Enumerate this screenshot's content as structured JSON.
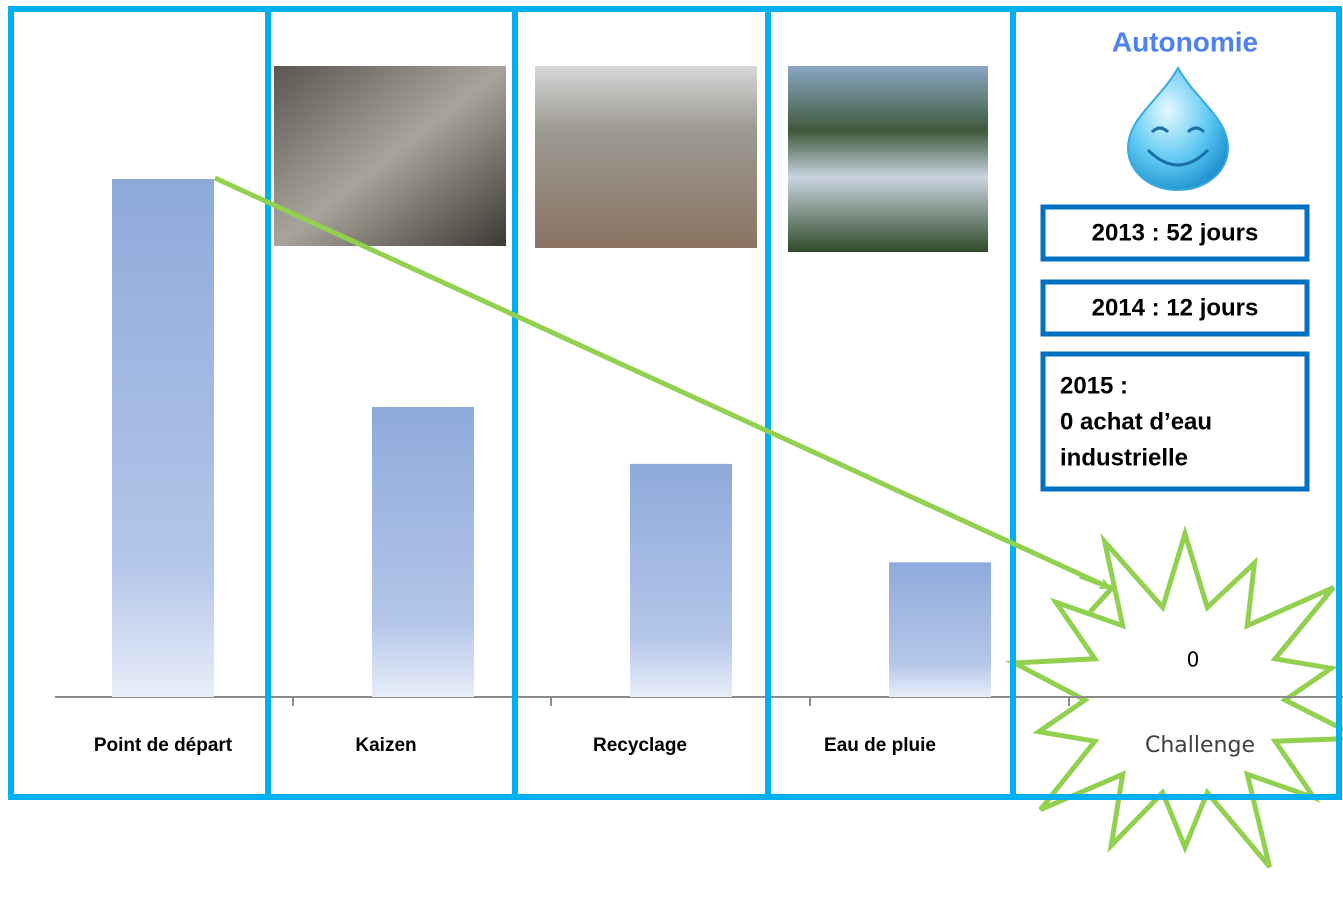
{
  "chart_data": {
    "type": "bar",
    "categories": [
      "Point de départ",
      "Kaizen",
      "Recyclage",
      "Eau de pluie",
      "Challenge"
    ],
    "values": [
      100,
      56,
      45,
      26,
      0
    ],
    "value_labels": [
      null,
      null,
      null,
      null,
      "0"
    ],
    "color": "#8eaadb"
  },
  "side_panel": {
    "title": "Autonomie",
    "items": [
      "2013 : 52 jours",
      "2014 : 12 jours"
    ],
    "last_item": [
      "2015 :",
      "0 achat d’eau",
      "industrielle"
    ]
  }
}
